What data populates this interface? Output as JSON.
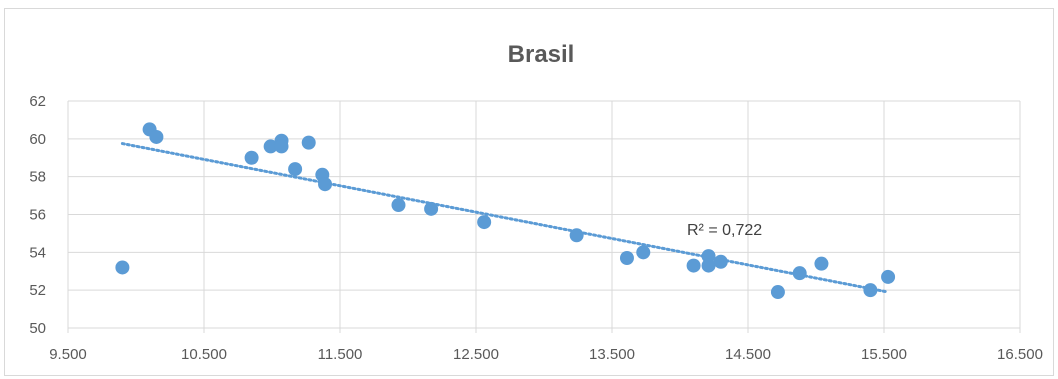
{
  "chart_data": {
    "type": "scatter",
    "title": "Brasil",
    "xlabel": "",
    "ylabel": "",
    "xlim": [
      9500,
      16500
    ],
    "ylim": [
      50,
      62
    ],
    "x_ticks": [
      9500,
      10500,
      11500,
      12500,
      13500,
      14500,
      15500,
      16500
    ],
    "x_tick_labels": [
      "9.500",
      "10.500",
      "11.500",
      "12.500",
      "13.500",
      "14.500",
      "15.500",
      "16.500"
    ],
    "y_ticks": [
      50,
      52,
      54,
      56,
      58,
      60,
      62
    ],
    "y_tick_labels": [
      "50",
      "52",
      "54",
      "56",
      "58",
      "60",
      "62"
    ],
    "grid": true,
    "legend": "none",
    "colors": {
      "point": "#5b9bd5",
      "trendline": "#5b9bd5",
      "grid": "#d9d9d9",
      "text": "#595959"
    },
    "series": [
      {
        "points": [
          {
            "x": 9900,
            "y": 53.2
          },
          {
            "x": 10100,
            "y": 60.5
          },
          {
            "x": 10150,
            "y": 60.1
          },
          {
            "x": 10850,
            "y": 59.0
          },
          {
            "x": 10990,
            "y": 59.6
          },
          {
            "x": 11070,
            "y": 59.9
          },
          {
            "x": 11070,
            "y": 59.6
          },
          {
            "x": 11170,
            "y": 58.4
          },
          {
            "x": 11270,
            "y": 59.8
          },
          {
            "x": 11370,
            "y": 58.1
          },
          {
            "x": 11390,
            "y": 57.6
          },
          {
            "x": 11930,
            "y": 56.5
          },
          {
            "x": 12170,
            "y": 56.3
          },
          {
            "x": 12560,
            "y": 55.6
          },
          {
            "x": 13240,
            "y": 54.9
          },
          {
            "x": 13610,
            "y": 53.7
          },
          {
            "x": 13730,
            "y": 54.0
          },
          {
            "x": 14100,
            "y": 53.3
          },
          {
            "x": 14210,
            "y": 53.8
          },
          {
            "x": 14210,
            "y": 53.3
          },
          {
            "x": 14300,
            "y": 53.5
          },
          {
            "x": 14720,
            "y": 51.9
          },
          {
            "x": 14880,
            "y": 52.9
          },
          {
            "x": 15040,
            "y": 53.4
          },
          {
            "x": 15400,
            "y": 52.0
          },
          {
            "x": 15530,
            "y": 52.7
          }
        ],
        "trendline": {
          "type": "linear",
          "x_start": 9900,
          "y_start": 59.75,
          "x_end": 15530,
          "y_end": 51.9,
          "r_squared_label": "R² = 0,722"
        }
      }
    ]
  }
}
